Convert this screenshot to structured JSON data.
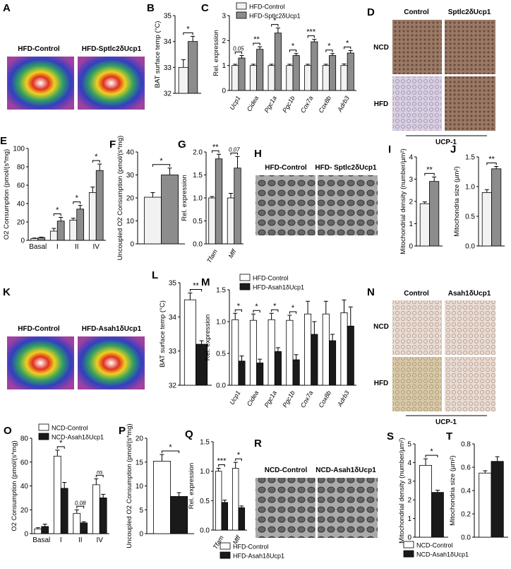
{
  "chart_data": [
    {
      "type": "bar",
      "panel": "B",
      "ylabel": "BAT surface temp (°C)",
      "categories": [
        null
      ],
      "ylim": [
        32,
        35
      ],
      "yticks": [
        32,
        33,
        34,
        35
      ],
      "annotations": [
        "*"
      ],
      "series": [
        {
          "color": "#f2f2f2",
          "values": [
            33.0
          ],
          "errors": [
            0.3
          ]
        },
        {
          "color": "#8c8c8c",
          "values": [
            34.0
          ],
          "errors": [
            0.2
          ]
        }
      ]
    },
    {
      "type": "bar",
      "panel": "C",
      "ylabel": "Rel. expression",
      "categories": [
        "Ucp1",
        "Cidea",
        "Pgc1a",
        "Pgc1b",
        "Cox7a",
        "Cox8b",
        "Adrb3"
      ],
      "ylim": [
        0,
        3
      ],
      "yticks": [
        0,
        1,
        2,
        3
      ],
      "annotations": [
        "0.05",
        "**",
        "*",
        "*",
        "***",
        "*",
        "*"
      ],
      "series": [
        {
          "name": "HFD-Control",
          "color": "#f2f2f2",
          "values": [
            1.0,
            1.0,
            1.0,
            1.0,
            1.0,
            1.0,
            1.0
          ],
          "errors": [
            0.05,
            0.05,
            0.05,
            0.05,
            0.05,
            0.05,
            0.06
          ]
        },
        {
          "name": "HFD-Sptlc2δUcp1",
          "color": "#8c8c8c",
          "values": [
            1.3,
            1.65,
            2.3,
            1.4,
            1.95,
            1.4,
            1.5
          ],
          "errors": [
            0.1,
            0.1,
            0.2,
            0.08,
            0.1,
            0.08,
            0.1
          ]
        }
      ]
    },
    {
      "type": "bar",
      "panel": "E",
      "ylabel": "O2 Consumption (pmol/(s*mg)",
      "categories": [
        "Basal",
        "I",
        "II",
        "IV"
      ],
      "ylim": [
        0,
        100
      ],
      "yticks": [
        0,
        20,
        40,
        60,
        80,
        100
      ],
      "annotations": [
        null,
        "*",
        "*",
        "*"
      ],
      "series": [
        {
          "color": "#f2f2f2",
          "values": [
            2,
            10,
            22,
            52
          ],
          "errors": [
            0.5,
            3,
            2,
            6
          ]
        },
        {
          "color": "#8c8c8c",
          "values": [
            3,
            21,
            34,
            76
          ],
          "errors": [
            0.5,
            4,
            4,
            7
          ]
        }
      ]
    },
    {
      "type": "bar",
      "panel": "F",
      "ylabel": "Uncoupled O2 Consumption (pmol/(s*mg)",
      "categories": [
        null
      ],
      "ylim": [
        0,
        40
      ],
      "yticks": [
        0,
        10,
        20,
        30,
        40
      ],
      "annotations": [
        "*"
      ],
      "series": [
        {
          "color": "#f2f2f2",
          "values": [
            20.3
          ],
          "errors": [
            2
          ]
        },
        {
          "color": "#8c8c8c",
          "values": [
            30
          ],
          "errors": [
            3
          ]
        }
      ]
    },
    {
      "type": "bar",
      "panel": "G",
      "ylabel": "Rel. expression",
      "categories": [
        "Tfam",
        "Mff"
      ],
      "ylim": [
        0,
        2
      ],
      "yticks": [
        {
          "value": 0,
          "label": "0.0"
        },
        0.5,
        {
          "value": 1,
          "label": "1.0"
        },
        1.5,
        {
          "value": 2,
          "label": "2.0"
        }
      ],
      "annotations": [
        "**",
        "0.07"
      ],
      "series": [
        {
          "color": "#f2f2f2",
          "values": [
            1.0,
            1.0
          ],
          "errors": [
            0.03,
            0.1
          ]
        },
        {
          "color": "#8c8c8c",
          "values": [
            1.85,
            1.65
          ],
          "errors": [
            0.1,
            0.25
          ]
        }
      ]
    },
    {
      "type": "bar",
      "panel": "I",
      "ylabel": "Mitochondrial density (number/µm²)",
      "categories": [
        null
      ],
      "ylim": [
        0,
        4
      ],
      "yticks": [
        0,
        1,
        2,
        3,
        4
      ],
      "annotations": [
        "**"
      ],
      "series": [
        {
          "color": "#f2f2f2",
          "values": [
            1.9
          ],
          "errors": [
            0.08
          ]
        },
        {
          "color": "#8c8c8c",
          "values": [
            2.9
          ],
          "errors": [
            0.2
          ]
        }
      ]
    },
    {
      "type": "bar",
      "panel": "J",
      "ylabel": "Mitochondria size (µm²)",
      "categories": [
        null
      ],
      "ylim": [
        0,
        1.5
      ],
      "yticks": [
        {
          "value": 0,
          "label": "0.0"
        },
        0.5,
        {
          "value": 1,
          "label": "1.0"
        },
        1.5
      ],
      "annotations": [
        "**"
      ],
      "series": [
        {
          "color": "#f2f2f2",
          "values": [
            0.9
          ],
          "errors": [
            0.05
          ]
        },
        {
          "color": "#8c8c8c",
          "values": [
            1.3
          ],
          "errors": [
            0.04
          ]
        }
      ]
    },
    {
      "type": "bar",
      "panel": "L",
      "ylabel": "BAT surface temp (°C)",
      "categories": [
        null
      ],
      "ylim": [
        32,
        35
      ],
      "yticks": [
        32,
        33,
        34,
        35
      ],
      "annotations": [
        "**"
      ],
      "series": [
        {
          "color": "#ffffff",
          "values": [
            34.5
          ],
          "errors": [
            0.2
          ]
        },
        {
          "color": "#1a1a1a",
          "values": [
            33.2
          ],
          "errors": [
            0.1
          ]
        }
      ]
    },
    {
      "type": "bar",
      "panel": "M",
      "ylabel": "Rel. expression",
      "categories": [
        "Ucp1",
        "Cidea",
        "Pgc1a",
        "Pgc1b",
        "Cox7a",
        "Cox8b",
        "Adrb3"
      ],
      "ylim": [
        0,
        1.5
      ],
      "yticks": [
        {
          "value": 0,
          "label": "0.0"
        },
        0.5,
        {
          "value": 1,
          "label": "1.0"
        },
        1.5
      ],
      "annotations": [
        "*",
        "*",
        "*",
        "*",
        null,
        null,
        null
      ],
      "series": [
        {
          "name": "HFD-Control",
          "color": "#ffffff",
          "values": [
            1.03,
            1.02,
            1.03,
            1.02,
            1.12,
            1.12,
            1.14
          ],
          "errors": [
            0.1,
            0.1,
            0.1,
            0.08,
            0.2,
            0.2,
            0.2
          ]
        },
        {
          "name": "HFD-Asah1δUcp1",
          "color": "#1a1a1a",
          "values": [
            0.38,
            0.35,
            0.53,
            0.4,
            0.8,
            0.7,
            0.93
          ],
          "errors": [
            0.08,
            0.06,
            0.06,
            0.08,
            0.2,
            0.1,
            0.3
          ]
        }
      ]
    },
    {
      "type": "bar",
      "panel": "O",
      "ylabel": "O2 Consumption (pmol/(s*mg)",
      "categories": [
        "Basal",
        "I",
        "II",
        "IV"
      ],
      "ylim": [
        0,
        80
      ],
      "yticks": [
        0,
        20,
        40,
        60,
        80
      ],
      "annotations": [
        null,
        "*",
        "0.08",
        "ns"
      ],
      "series": [
        {
          "name": "NCD-Control",
          "color": "#ffffff",
          "values": [
            4,
            65,
            17,
            41
          ],
          "errors": [
            1,
            5,
            3,
            5
          ]
        },
        {
          "name": "NCD-Asah1δUcp1",
          "color": "#1a1a1a",
          "values": [
            6,
            38,
            9,
            30
          ],
          "errors": [
            2,
            5,
            1,
            3
          ]
        }
      ]
    },
    {
      "type": "bar",
      "panel": "P",
      "ylabel": "Uncoupled O2 Consumption (pmol/(s*mg)",
      "categories": [
        null
      ],
      "ylim": [
        0,
        20
      ],
      "yticks": [
        0,
        5,
        10,
        15,
        20
      ],
      "annotations": [
        "*"
      ],
      "series": [
        {
          "color": "#ffffff",
          "values": [
            15.2
          ],
          "errors": [
            1.4
          ]
        },
        {
          "color": "#1a1a1a",
          "values": [
            7.8
          ],
          "errors": [
            0.8
          ]
        }
      ]
    },
    {
      "type": "bar",
      "panel": "Q",
      "ylabel": "Rel. expression",
      "categories": [
        "Tfam",
        "Mff"
      ],
      "ylim": [
        0,
        1.5
      ],
      "yticks": [
        {
          "value": 0,
          "label": "0.0"
        },
        0.5,
        {
          "value": 1,
          "label": "1.0"
        },
        1.5
      ],
      "annotations": [
        "***",
        "*"
      ],
      "series": [
        {
          "name": "HFD-Control",
          "color": "#ffffff",
          "values": [
            1.0,
            1.05
          ],
          "errors": [
            0.05,
            0.1
          ]
        },
        {
          "name": "HFD-Asah1δUcp1",
          "color": "#1a1a1a",
          "values": [
            0.47,
            0.38
          ],
          "errors": [
            0.04,
            0.03
          ]
        }
      ]
    },
    {
      "type": "bar",
      "panel": "S",
      "ylabel": "Mitochondrial density (number/µm²)",
      "categories": [
        null
      ],
      "ylim": [
        0,
        5
      ],
      "yticks": [
        0,
        1,
        2,
        3,
        4,
        5
      ],
      "annotations": [
        "*"
      ],
      "series": [
        {
          "name": "NCD-Control",
          "color": "#ffffff",
          "values": [
            3.85
          ],
          "errors": [
            0.35
          ]
        },
        {
          "name": "NCD-Asah1δUcp1",
          "color": "#1a1a1a",
          "values": [
            2.4
          ],
          "errors": [
            0.12
          ]
        }
      ]
    },
    {
      "type": "bar",
      "panel": "T",
      "ylabel": "Mitochondria size (µm²)",
      "categories": [
        null
      ],
      "ylim": [
        0,
        0.8
      ],
      "yticks": [
        {
          "value": 0,
          "label": "0.0"
        },
        0.2,
        0.4,
        0.6,
        0.8
      ],
      "annotations": [
        null
      ],
      "series": [
        {
          "color": "#ffffff",
          "values": [
            0.55
          ],
          "errors": [
            0.02
          ]
        },
        {
          "color": "#1a1a1a",
          "values": [
            0.65
          ],
          "errors": [
            0.04
          ]
        }
      ]
    }
  ],
  "images": [
    {
      "panel": "A",
      "captions": [
        "HFD-Control",
        "HFD-Sptlc2δUcp1"
      ]
    },
    {
      "panel": "D",
      "columns": [
        "Control",
        "Sptlc2δUcp1"
      ],
      "rows": [
        "NCD",
        "HFD"
      ],
      "stain": "UCP-1"
    },
    {
      "panel": "H",
      "captions": [
        "HFD-Control",
        "HFD- Sptlc2δUcp1"
      ]
    },
    {
      "panel": "K",
      "captions": [
        "HFD-Control",
        "HFD-Asah1δUcp1"
      ]
    },
    {
      "panel": "N",
      "columns": [
        "Control",
        "Asah1δUcp1"
      ],
      "rows": [
        "NCD",
        "HFD"
      ],
      "stain": "UCP-1"
    },
    {
      "panel": "R",
      "captions": [
        "NCD-Control",
        "NCD-Asah1δUcp1"
      ]
    }
  ]
}
